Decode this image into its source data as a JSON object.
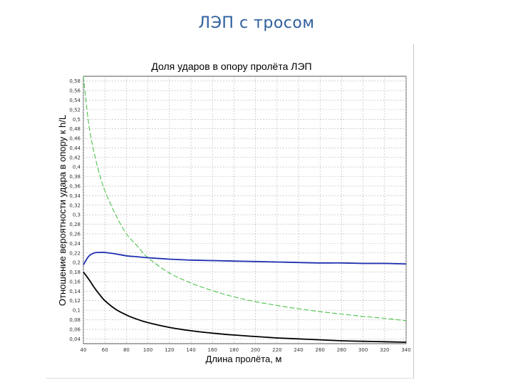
{
  "slide": {
    "title": "ЛЭП с тросом"
  },
  "chart_data": {
    "type": "line",
    "title": "Доля ударов в опору пролёта ЛЭП",
    "xlabel": "Длина пролёта, м",
    "ylabel": "Отношение вероятности удара в опору к h/L",
    "xlim": [
      40,
      340
    ],
    "ylim": [
      0.03,
      0.59
    ],
    "grid": true,
    "x_ticks": [
      40,
      60,
      80,
      100,
      120,
      140,
      160,
      180,
      200,
      220,
      240,
      260,
      280,
      300,
      320,
      340
    ],
    "x_tick_labels": [
      "40",
      "60",
      "80",
      "100",
      "120",
      "140",
      "160",
      "180",
      "200",
      "220",
      "240",
      "260",
      "280",
      "300",
      "320",
      "340"
    ],
    "y_ticks": [
      0.04,
      0.06,
      0.08,
      0.1,
      0.12,
      0.14,
      0.16,
      0.18,
      0.2,
      0.22,
      0.24,
      0.26,
      0.28,
      0.3,
      0.32,
      0.34,
      0.36,
      0.38,
      0.4,
      0.42,
      0.44,
      0.46,
      0.48,
      0.5,
      0.52,
      0.54,
      0.56,
      0.58
    ],
    "y_tick_labels": [
      "0,04",
      "0,06",
      "0,08",
      "0,1",
      "0,12",
      "0,14",
      "0,16",
      "0,18",
      "0,2",
      "0,22",
      "0,24",
      "0,26",
      "0,28",
      "0,3",
      "0,32",
      "0,34",
      "0,36",
      "0,38",
      "0,4",
      "0,42",
      "0,44",
      "0,46",
      "0,48",
      "0,5",
      "0,52",
      "0,54",
      "0,56",
      "0,58"
    ],
    "x": [
      40,
      45,
      50,
      55,
      60,
      70,
      80,
      90,
      100,
      120,
      140,
      160,
      180,
      200,
      220,
      240,
      260,
      280,
      300,
      320,
      340
    ],
    "series": [
      {
        "color": "#4cc34c",
        "dashed": true,
        "values": [
          0.59,
          0.49,
          0.43,
          0.385,
          0.35,
          0.3,
          0.26,
          0.235,
          0.21,
          0.178,
          0.157,
          0.141,
          0.128,
          0.118,
          0.11,
          0.103,
          0.097,
          0.092,
          0.087,
          0.083,
          0.078
        ]
      },
      {
        "color": "#1f2fb0",
        "dashed": false,
        "values": [
          0.195,
          0.213,
          0.22,
          0.221,
          0.221,
          0.218,
          0.214,
          0.212,
          0.21,
          0.207,
          0.205,
          0.204,
          0.203,
          0.202,
          0.201,
          0.2,
          0.199,
          0.199,
          0.198,
          0.198,
          0.197
        ]
      },
      {
        "color": "#000000",
        "dashed": false,
        "values": [
          0.18,
          0.165,
          0.148,
          0.133,
          0.12,
          0.102,
          0.09,
          0.081,
          0.074,
          0.064,
          0.057,
          0.052,
          0.048,
          0.045,
          0.042,
          0.04,
          0.038,
          0.036,
          0.035,
          0.034,
          0.033
        ]
      }
    ]
  }
}
